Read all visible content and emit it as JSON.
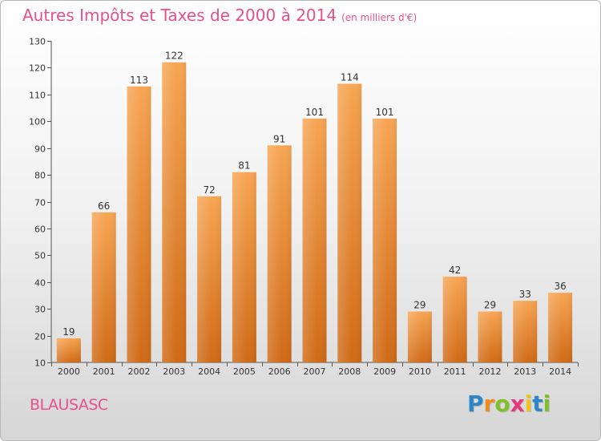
{
  "header": {
    "title": "Autres Impôts et Taxes de 2000 à 2014",
    "unit": "(en milliers d'€)"
  },
  "town": "BLAUSASC",
  "logo": {
    "letters": [
      "P",
      "r",
      "o",
      "x",
      "i",
      "t",
      "i"
    ],
    "colors": [
      "#2e86c8",
      "#f08a1c",
      "#7fbf2a",
      "#e63a7a",
      "#f0c41c",
      "#2e86c8",
      "#7fbf2a"
    ]
  },
  "chart_data": {
    "type": "bar",
    "title": "Autres Impôts et Taxes de 2000 à 2014",
    "subtitle": "(en milliers d'€)",
    "categories": [
      "2000",
      "2001",
      "2002",
      "2003",
      "2004",
      "2005",
      "2006",
      "2007",
      "2008",
      "2009",
      "2010",
      "2011",
      "2012",
      "2013",
      "2014"
    ],
    "values": [
      19,
      66,
      113,
      122,
      72,
      81,
      91,
      101,
      114,
      101,
      29,
      42,
      29,
      33,
      36
    ],
    "ylim": [
      10,
      130
    ],
    "yticks": [
      10,
      20,
      30,
      40,
      50,
      60,
      70,
      80,
      90,
      100,
      110,
      120,
      130
    ],
    "grid": false,
    "bar_color_top": "#f7a553",
    "bar_color_bottom": "#cf6a16"
  }
}
